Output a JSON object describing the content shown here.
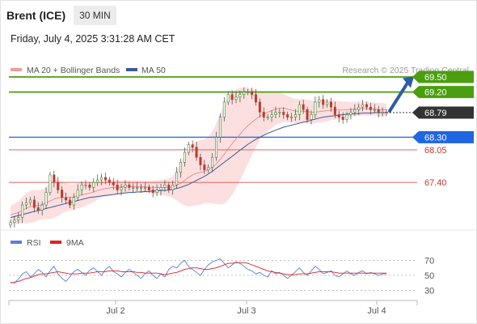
{
  "header": {
    "instrument": "Brent (ICE)",
    "timeframe": "30 MIN",
    "datetime": "Friday, July 4, 2025 3:31:28 AM CET"
  },
  "legend": {
    "ma20": "MA 20 + Bollinger Bands",
    "ma50": "MA 50",
    "credit": "Research © 2025 Trading Central",
    "rsi": "RSI",
    "ma9": "9MA"
  },
  "colors": {
    "up_target": "#4a9e0f",
    "current": "#333333",
    "pivot": "#1f66e0",
    "support": "#e05050",
    "ma50": "#3d5a99",
    "bollinger_fill": "#fbd9d9",
    "arrow": "#2f5aa8",
    "rsi": "#5b7fd6",
    "rsi_ma": "#e02020"
  },
  "levels": [
    {
      "label": "69.50",
      "value": 69.5,
      "kind": "resistance"
    },
    {
      "label": "69.20",
      "value": 69.2,
      "kind": "resistance"
    },
    {
      "label": "68.79",
      "value": 68.79,
      "kind": "current"
    },
    {
      "label": "68.30",
      "value": 68.3,
      "kind": "pivot"
    },
    {
      "label": "68.05",
      "value": 68.05,
      "kind": "support"
    },
    {
      "label": "67.40",
      "value": 67.4,
      "kind": "support"
    }
  ],
  "chart_data": [
    {
      "type": "candlestick",
      "title": "Brent (ICE) 30 MIN",
      "x_ticks": [
        "Jul 2",
        "Jul 3",
        "Jul 4"
      ],
      "price_range": [
        66.5,
        70.0
      ],
      "annotation": "upward arrow from 68.79 toward 69.50",
      "closes": [
        66.6,
        66.65,
        66.7,
        66.95,
        67.0,
        67.05,
        66.9,
        66.85,
        66.95,
        67.2,
        67.55,
        67.4,
        67.25,
        67.1,
        67.05,
        66.95,
        67.1,
        67.25,
        67.35,
        67.35,
        67.3,
        67.4,
        67.45,
        67.5,
        67.45,
        67.4,
        67.35,
        67.25,
        67.3,
        67.35,
        67.3,
        67.3,
        67.3,
        67.3,
        67.3,
        67.25,
        67.2,
        67.25,
        67.3,
        67.35,
        67.25,
        67.35,
        67.6,
        67.8,
        68.0,
        68.15,
        68.1,
        67.9,
        67.75,
        67.65,
        67.7,
        67.9,
        68.3,
        68.7,
        69.0,
        69.15,
        69.05,
        69.1,
        69.15,
        69.2,
        69.2,
        69.15,
        69.0,
        68.8,
        68.7,
        68.7,
        68.75,
        68.8,
        68.8,
        68.75,
        68.7,
        68.7,
        68.75,
        68.95,
        68.85,
        68.65,
        68.75,
        69.0,
        69.05,
        68.95,
        69.0,
        68.9,
        68.75,
        68.7,
        68.65,
        68.75,
        68.8,
        68.85,
        68.9,
        68.95,
        68.9,
        68.85,
        68.85,
        68.8,
        68.8,
        68.79
      ],
      "ma20": [
        66.75,
        66.78,
        66.8,
        66.85,
        66.88,
        66.92,
        66.93,
        66.94,
        66.96,
        66.99,
        67.03,
        67.07,
        67.09,
        67.1,
        67.1,
        67.1,
        67.11,
        67.13,
        67.15,
        67.17,
        67.19,
        67.21,
        67.24,
        67.26,
        67.28,
        67.29,
        67.3,
        67.3,
        67.31,
        67.32,
        67.32,
        67.32,
        67.32,
        67.32,
        67.31,
        67.31,
        67.3,
        67.3,
        67.3,
        67.3,
        67.3,
        67.31,
        67.34,
        67.38,
        67.44,
        67.5,
        67.55,
        67.58,
        67.6,
        67.62,
        67.65,
        67.7,
        67.77,
        67.86,
        67.96,
        68.07,
        68.17,
        68.27,
        68.36,
        68.45,
        68.53,
        68.6,
        68.66,
        68.72,
        68.76,
        68.8,
        68.83,
        68.86,
        68.88,
        68.88,
        68.86,
        68.84,
        68.82,
        68.82,
        68.82,
        68.81,
        68.8,
        68.8,
        68.81,
        68.82,
        68.83,
        68.84,
        68.84,
        68.84,
        68.84,
        68.85,
        68.85,
        68.86,
        68.87,
        68.87,
        68.87,
        68.86,
        68.86,
        68.85,
        68.85,
        68.84
      ],
      "ma50": [
        66.7,
        66.72,
        66.74,
        66.76,
        66.78,
        66.8,
        66.82,
        66.84,
        66.86,
        66.88,
        66.9,
        66.92,
        66.94,
        66.96,
        66.98,
        67.0,
        67.02,
        67.04,
        67.06,
        67.08,
        67.1,
        67.11,
        67.12,
        67.13,
        67.14,
        67.15,
        67.16,
        67.17,
        67.18,
        67.19,
        67.2,
        67.2,
        67.21,
        67.21,
        67.22,
        67.22,
        67.23,
        67.23,
        67.24,
        67.24,
        67.25,
        67.26,
        67.28,
        67.3,
        67.33,
        67.36,
        67.4,
        67.44,
        67.48,
        67.52,
        67.57,
        67.62,
        67.68,
        67.74,
        67.8,
        67.86,
        67.92,
        67.98,
        68.04,
        68.1,
        68.16,
        68.21,
        68.26,
        68.3,
        68.34,
        68.38,
        68.41,
        68.44,
        68.47,
        68.5,
        68.52,
        68.54,
        68.56,
        68.58,
        68.6,
        68.62,
        68.64,
        68.66,
        68.68,
        68.7,
        68.71,
        68.72,
        68.73,
        68.74,
        68.75,
        68.76,
        68.76,
        68.77,
        68.77,
        68.78,
        68.78,
        68.78,
        68.79,
        68.79,
        68.79,
        68.79
      ],
      "band_width": [
        0.18,
        0.2,
        0.22,
        0.26,
        0.3,
        0.32,
        0.32,
        0.3,
        0.3,
        0.32,
        0.36,
        0.38,
        0.36,
        0.32,
        0.28,
        0.26,
        0.25,
        0.25,
        0.25,
        0.24,
        0.22,
        0.2,
        0.18,
        0.17,
        0.16,
        0.15,
        0.14,
        0.14,
        0.13,
        0.13,
        0.12,
        0.12,
        0.12,
        0.12,
        0.12,
        0.12,
        0.13,
        0.14,
        0.15,
        0.16,
        0.18,
        0.22,
        0.3,
        0.4,
        0.5,
        0.58,
        0.62,
        0.64,
        0.64,
        0.64,
        0.66,
        0.72,
        0.8,
        0.9,
        0.98,
        1.02,
        1.02,
        0.98,
        0.92,
        0.84,
        0.76,
        0.66,
        0.56,
        0.48,
        0.42,
        0.38,
        0.35,
        0.32,
        0.3,
        0.28,
        0.26,
        0.25,
        0.24,
        0.24,
        0.24,
        0.24,
        0.23,
        0.22,
        0.22,
        0.22,
        0.22,
        0.2,
        0.19,
        0.18,
        0.17,
        0.16,
        0.15,
        0.15,
        0.14,
        0.14,
        0.14,
        0.13,
        0.13,
        0.13,
        0.13,
        0.13
      ]
    },
    {
      "type": "line",
      "title": "RSI",
      "y_ticks": [
        70,
        50,
        30
      ],
      "ylim": [
        20,
        80
      ],
      "series": [
        {
          "name": "RSI",
          "values": [
            41,
            40,
            45,
            52,
            55,
            48,
            52,
            58,
            54,
            48,
            56,
            62,
            52,
            46,
            42,
            48,
            55,
            58,
            54,
            50,
            57,
            60,
            55,
            50,
            58,
            62,
            55,
            52,
            48,
            54,
            58,
            54,
            50,
            46,
            52,
            56,
            50,
            46,
            52,
            48,
            58,
            62,
            60,
            66,
            70,
            62,
            58,
            54,
            50,
            58,
            64,
            68,
            70,
            72,
            66,
            60,
            64,
            68,
            66,
            62,
            58,
            56,
            52,
            54,
            50,
            48,
            56,
            52,
            54,
            50,
            46,
            50,
            55,
            60,
            54,
            50,
            56,
            62,
            58,
            52,
            54,
            56,
            50,
            48,
            52,
            56,
            52,
            50,
            54,
            56,
            52,
            54,
            52,
            50,
            52,
            52
          ]
        },
        {
          "name": "9MA",
          "values": [
            40,
            41,
            42,
            44,
            46,
            47,
            49,
            51,
            52,
            52,
            53,
            54,
            55,
            54,
            53,
            52,
            52,
            52,
            53,
            53,
            53,
            54,
            55,
            55,
            55,
            56,
            56,
            56,
            55,
            55,
            55,
            55,
            54,
            54,
            53,
            53,
            53,
            53,
            52,
            51,
            52,
            53,
            54,
            56,
            58,
            59,
            60,
            60,
            59,
            58,
            58,
            59,
            60,
            62,
            64,
            66,
            66,
            67,
            67,
            67,
            66,
            64,
            62,
            60,
            58,
            56,
            55,
            54,
            53,
            52,
            51,
            51,
            51,
            52,
            52,
            52,
            53,
            54,
            55,
            55,
            55,
            55,
            54,
            53,
            53,
            53,
            53,
            53,
            53,
            53,
            53,
            53,
            53,
            53,
            53,
            53
          ]
        }
      ]
    }
  ]
}
